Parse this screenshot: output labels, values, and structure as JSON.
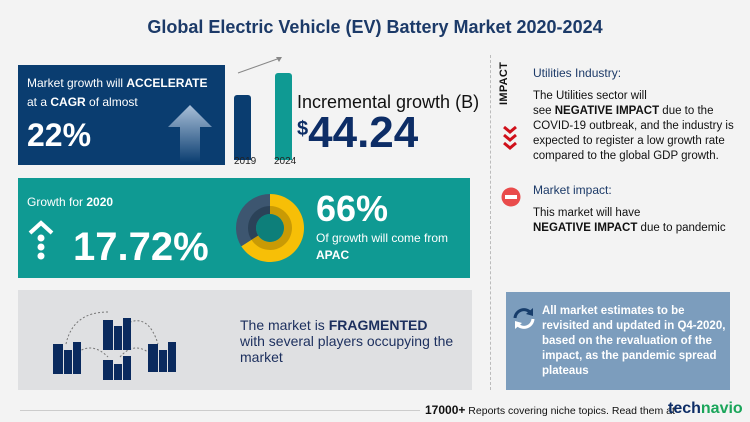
{
  "title": "Global Electric Vehicle (EV) Battery Market 2020-2024",
  "cagr": {
    "line1_pre": "Market growth will ",
    "line1_bold": "ACCELERATE",
    "line2_pre": "at a ",
    "line2_bold": "CAGR",
    "line2_post": " of almost",
    "value": "22%"
  },
  "incremental": {
    "years": [
      "2019",
      "2024"
    ],
    "label": "Incremental growth (B)",
    "currency": "$",
    "value": "44.24"
  },
  "growth2020": {
    "label_pre": "Growth for ",
    "label_year": "2020",
    "value": "17.72%",
    "share_pct": "66%",
    "share_fraction": 0.66,
    "share_text": "Of growth will come from",
    "region": "APAC",
    "colors": {
      "main": "#f7bf07",
      "rest": "#3d5670"
    }
  },
  "fragmented": {
    "pre": "The market is ",
    "bold": "FRAGMENTED",
    "post": "with several players occupying the market"
  },
  "impact": {
    "vertical_label": "IMPACT",
    "utilities_head": "Utilities Industry:",
    "utilities_l1": "The Utilities sector will",
    "utilities_l2_pre": "see ",
    "utilities_l2_bold": "NEGATIVE IMPACT",
    "utilities_l2_post": " due to the",
    "utilities_l3": "COVID-19 outbreak, and the industry is expected to register a low growth rate compared to the global GDP growth.",
    "market_head": "Market impact:",
    "market_l1": "This market will have",
    "market_bold": "NEGATIVE IMPACT",
    "market_post": " due to pandemic"
  },
  "estimates": "All market estimates to be revisited and updated in Q4-2020, based on the revaluation of the impact, as the pandemic spread plateaus",
  "footer": {
    "count": "17000+",
    "text": " Reports covering niche topics. Read them at",
    "logo_a": "tech",
    "logo_b": "navio"
  },
  "colors": {
    "navy": "#0a3d70",
    "teal": "#0f9a93",
    "red": "#e53935"
  }
}
